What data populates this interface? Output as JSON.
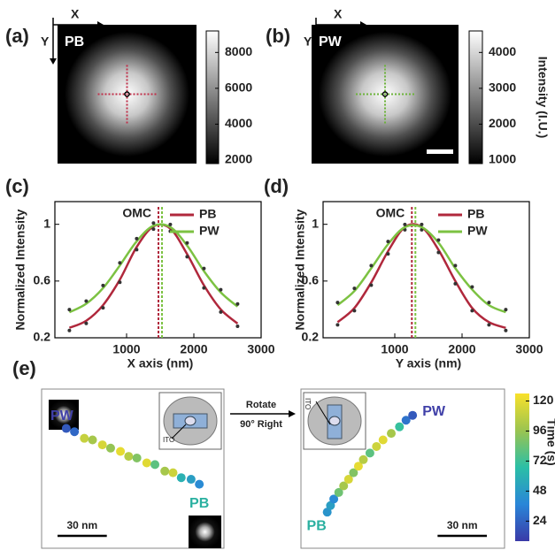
{
  "chart_data": [
    {
      "type": "image",
      "panel_label": "(a)",
      "x_arrow_label": "X",
      "y_arrow_label": "Y",
      "label": "PB",
      "cross_color": "#c0304a",
      "colorbar": {
        "ylim": [
          1800,
          9200
        ],
        "yticks": [
          2000,
          4000,
          6000,
          8000
        ]
      }
    },
    {
      "type": "image",
      "panel_label": "(b)",
      "x_arrow_label": "X",
      "y_arrow_label": "Y",
      "label": "PW",
      "cross_color": "#6cb33a",
      "colorbar": {
        "ylim": [
          900,
          4600
        ],
        "yticks": [
          1000,
          2000,
          3000,
          4000
        ],
        "label": "Intensity (I.U.)"
      }
    },
    {
      "type": "line",
      "panel_label": "(c)",
      "xlabel": "X axis (nm)",
      "ylabel": "Normalized Intensity",
      "annotation": "OMC",
      "omc_x": 1500,
      "x": [
        150,
        400,
        650,
        900,
        1150,
        1400,
        1650,
        1900,
        2150,
        2400,
        2650
      ],
      "xlim": [
        0,
        3000
      ],
      "ylim": [
        0.2,
        1.16
      ],
      "xticks": [
        1000,
        2000,
        3000
      ],
      "yticks": [
        0.2,
        0.6,
        1
      ],
      "series": [
        {
          "name": "PB",
          "color": "#b0283c",
          "values": [
            0.27,
            0.32,
            0.43,
            0.61,
            0.84,
            0.985,
            0.97,
            0.79,
            0.57,
            0.4,
            0.3
          ]
        },
        {
          "name": "PW",
          "color": "#7cc242",
          "values": [
            0.38,
            0.44,
            0.55,
            0.71,
            0.88,
            0.99,
            0.98,
            0.85,
            0.67,
            0.52,
            0.42
          ]
        }
      ]
    },
    {
      "type": "line",
      "panel_label": "(d)",
      "xlabel": "Y axis (nm)",
      "ylabel": "Normalized Intensity",
      "annotation": "OMC",
      "omc_x": 1280,
      "x": [
        150,
        400,
        650,
        900,
        1150,
        1400,
        1650,
        1900,
        2150,
        2400,
        2650
      ],
      "xlim": [
        0,
        3000
      ],
      "ylim": [
        0.2,
        1.16
      ],
      "xticks": [
        1000,
        2000,
        3000
      ],
      "yticks": [
        0.2,
        0.6,
        1
      ],
      "series": [
        {
          "name": "PB",
          "color": "#b0283c",
          "values": [
            0.31,
            0.41,
            0.59,
            0.81,
            0.98,
            0.98,
            0.82,
            0.6,
            0.41,
            0.31,
            0.27
          ]
        },
        {
          "name": "PW",
          "color": "#7cc242",
          "values": [
            0.43,
            0.53,
            0.69,
            0.86,
            0.98,
            0.98,
            0.87,
            0.69,
            0.54,
            0.43,
            0.38
          ]
        }
      ]
    },
    {
      "type": "trajectory",
      "panel_label": "(e)",
      "start_label": "PW",
      "end_label": "PB",
      "inset_label": "ITO",
      "scale_bar": {
        "value": 30,
        "label": "30 nm"
      },
      "xlim": [
        0,
        111
      ],
      "ylim": [
        0,
        97
      ],
      "x": [
        15,
        20,
        26,
        31,
        37,
        42,
        48,
        53,
        58,
        64,
        69,
        75,
        80,
        85,
        91,
        96
      ],
      "y": [
        73,
        71,
        67,
        66,
        63,
        61,
        59,
        56,
        55,
        52,
        51,
        47,
        46,
        43,
        42,
        39
      ],
      "time": [
        20,
        26,
        110,
        100,
        115,
        95,
        120,
        105,
        90,
        118,
        80,
        100,
        112,
        60,
        50,
        40
      ]
    },
    {
      "type": "trajectory",
      "start_label": "PB",
      "end_label": "PW",
      "inset_label": "ITO",
      "arrow_text": [
        "Rotate",
        "90° Right"
      ],
      "scale_bar": {
        "value": 30,
        "label": "30 nm"
      },
      "xlim": [
        0,
        124
      ],
      "ylim": [
        0,
        97
      ],
      "x": [
        16,
        18,
        20,
        23,
        26,
        29,
        32,
        35,
        38,
        42,
        46,
        50,
        55,
        60,
        64,
        68
      ],
      "y": [
        22,
        26,
        30,
        34,
        38,
        42,
        46,
        50,
        54,
        58,
        62,
        66,
        70,
        74,
        78,
        81
      ],
      "time": [
        45,
        50,
        40,
        85,
        100,
        115,
        90,
        120,
        105,
        80,
        112,
        118,
        100,
        70,
        30,
        20
      ]
    },
    {
      "type": "colorbar",
      "label": "Time (s)",
      "ylim": [
        8,
        126
      ],
      "yticks": [
        24,
        48,
        72,
        96,
        120
      ]
    }
  ]
}
